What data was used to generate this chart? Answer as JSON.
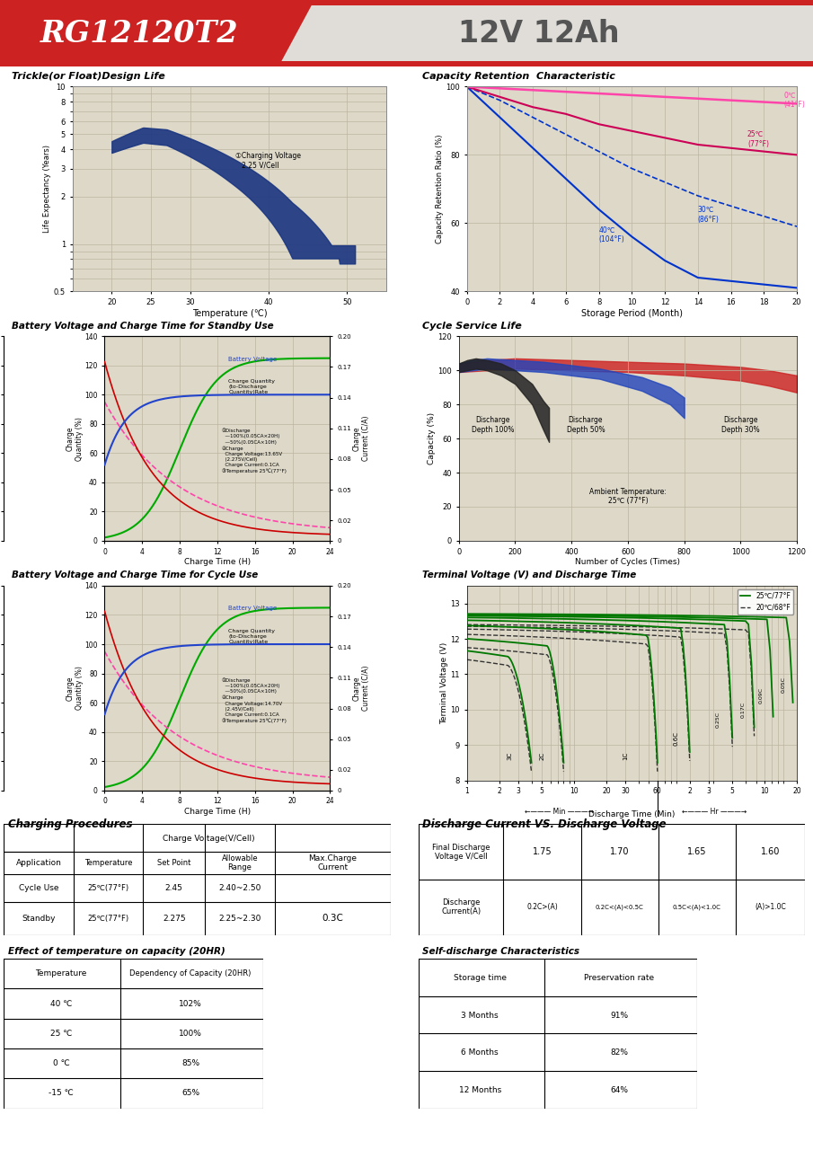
{
  "title_model": "RG12120T2",
  "title_spec": "12V 12Ah",
  "header_red": "#cc2222",
  "plot_bg": "#ddd8c8",
  "grid_color": "#bbb5a0",
  "section1_title": "Trickle(or Float)Design Life",
  "section2_title": "Capacity Retention  Characteristic",
  "section3_title": "Battery Voltage and Charge Time for Standby Use",
  "section4_title": "Cycle Service Life",
  "section5_title": "Battery Voltage and Charge Time for Cycle Use",
  "section6_title": "Terminal Voltage (V) and Discharge Time",
  "section7_title": "Charging Procedures",
  "section8_title": "Discharge Current VS. Discharge Voltage",
  "section9_title": "Effect of temperature on capacity (20HR)",
  "section10_title": "Self-discharge Characteristics",
  "footer_red": "#cc2222"
}
